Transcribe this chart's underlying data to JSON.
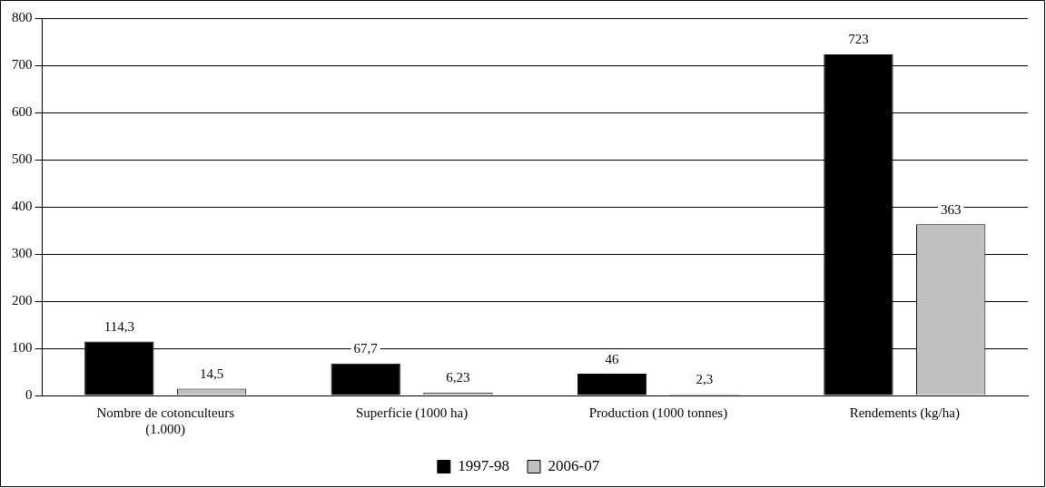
{
  "chart_data": {
    "type": "bar",
    "categories": [
      "Nombre de cotonculteurs (1.000)",
      "Superficie (1000 ha)",
      "Production (1000 tonnes)",
      "Rendements (kg/ha)"
    ],
    "series": [
      {
        "name": "1997-98",
        "color": "#000000",
        "values": [
          114.3,
          67.7,
          46,
          723
        ],
        "value_labels": [
          "114,3",
          "67,7",
          "46",
          "723"
        ]
      },
      {
        "name": "2006-07",
        "color": "#c0c0c0",
        "values": [
          14.5,
          6.23,
          2.3,
          363
        ],
        "value_labels": [
          "14,5",
          "6,23",
          "2,3",
          "363"
        ]
      }
    ],
    "ylim": [
      0,
      800
    ],
    "yticks": [
      0,
      100,
      200,
      300,
      400,
      500,
      600,
      700,
      800
    ],
    "grid": "y",
    "legend": "bottom"
  }
}
